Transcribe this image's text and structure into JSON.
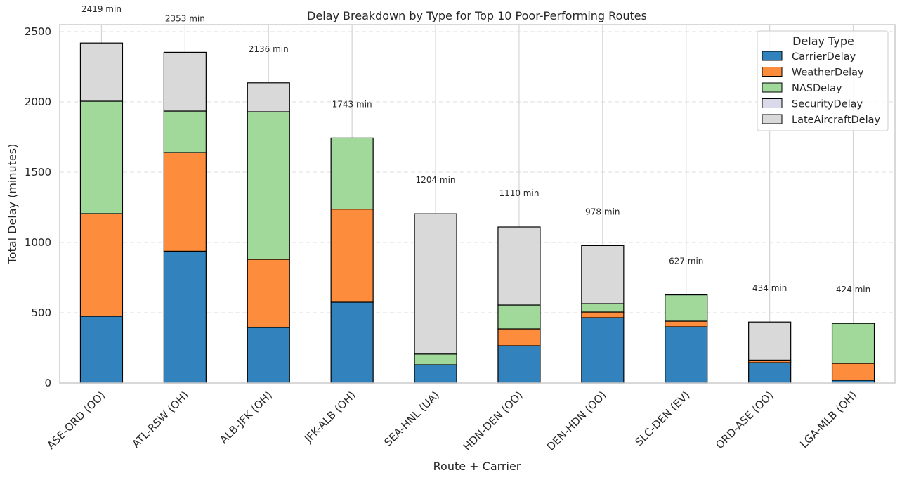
{
  "chart_data": {
    "type": "bar",
    "stacked": true,
    "title": "Delay Breakdown by Type for Top 10 Poor-Performing Routes",
    "xlabel": "Route + Carrier",
    "ylabel": "Total Delay (minutes)",
    "ylim": [
      0,
      2550
    ],
    "yticks": [
      0,
      500,
      1000,
      1500,
      2000,
      2500
    ],
    "grid": "y-dashed",
    "legend_title": "Delay Type",
    "legend_position": "top-right",
    "categories": [
      "ASE-ORD (OO)",
      "ATL-RSW (OH)",
      "ALB-JFK (OH)",
      "JFK-ALB (OH)",
      "SEA-HNL (UA)",
      "HDN-DEN (OO)",
      "DEN-HDN (OO)",
      "SLC-DEN (EV)",
      "ORD-ASE (OO)",
      "LGA-MLB (OH)"
    ],
    "totals": [
      2419,
      2353,
      2136,
      1743,
      1204,
      1110,
      978,
      627,
      434,
      424
    ],
    "total_suffix": " min",
    "series": [
      {
        "name": "CarrierDelay",
        "color": "#3182bd",
        "values": [
          475,
          938,
          395,
          575,
          130,
          265,
          465,
          400,
          145,
          20
        ]
      },
      {
        "name": "WeatherDelay",
        "color": "#fd8d3c",
        "values": [
          730,
          702,
          485,
          662,
          0,
          120,
          40,
          40,
          18,
          120
        ]
      },
      {
        "name": "NASDelay",
        "color": "#a1d99b",
        "values": [
          800,
          295,
          1050,
          506,
          76,
          170,
          60,
          187,
          0,
          284
        ]
      },
      {
        "name": "SecurityDelay",
        "color": "#dadaeb",
        "values": [
          0,
          0,
          0,
          0,
          0,
          0,
          0,
          0,
          0,
          0
        ]
      },
      {
        "name": "LateAircraftDelay",
        "color": "#d9d9d9",
        "values": [
          414,
          418,
          206,
          0,
          998,
          555,
          413,
          0,
          271,
          0
        ]
      }
    ]
  }
}
